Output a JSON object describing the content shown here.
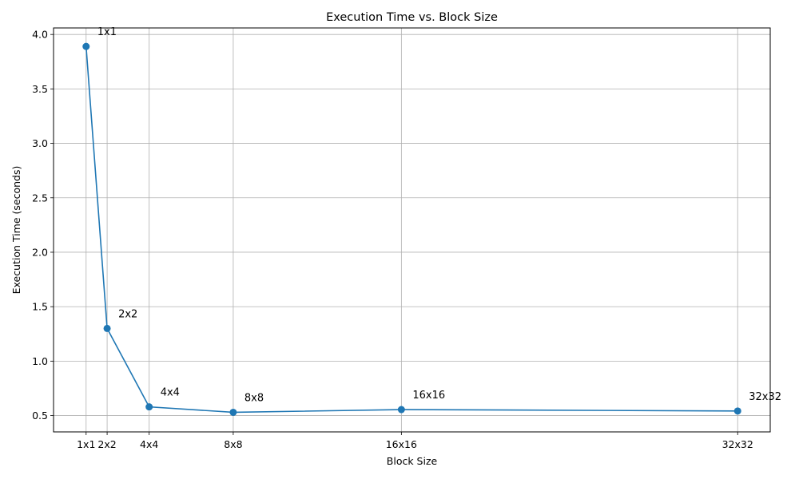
{
  "chart_data": {
    "type": "line",
    "title": "Execution Time vs. Block Size",
    "xlabel": "Block Size",
    "ylabel": "Execution Time (seconds)",
    "x": [
      1,
      2,
      4,
      8,
      16,
      32
    ],
    "categories": [
      "1x1",
      "2x2",
      "4x4",
      "8x8",
      "16x16",
      "32x32"
    ],
    "series": [
      {
        "values": [
          3.89,
          1.3,
          0.58,
          0.53,
          0.555,
          0.542
        ],
        "color": "#1f77b4",
        "marker": "circle"
      }
    ],
    "annotations": [
      "1x1",
      "2x2",
      "4x4",
      "8x8",
      "16x16",
      "32x32"
    ],
    "xlim": [
      -0.55,
      33.55
    ],
    "ylim": [
      0.35,
      4.06
    ],
    "yticks": [
      0.5,
      1.0,
      1.5,
      2.0,
      2.5,
      3.0,
      3.5,
      4.0
    ],
    "ytick_labels": [
      "0.5",
      "1.0",
      "1.5",
      "2.0",
      "2.5",
      "3.0",
      "3.5",
      "4.0"
    ],
    "grid": true,
    "legend": false
  }
}
